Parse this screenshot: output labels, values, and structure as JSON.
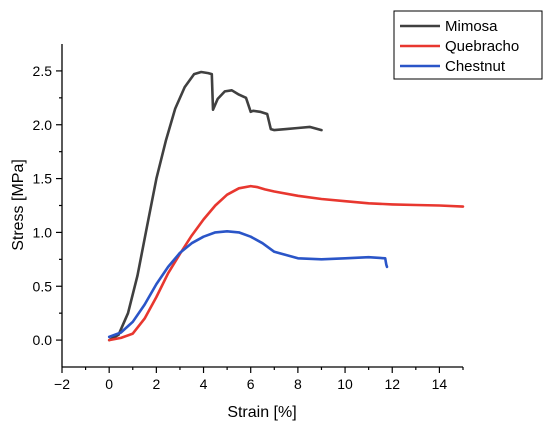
{
  "chart_data": {
    "type": "line",
    "xlabel": "Strain [%]",
    "ylabel": "Stress [MPa]",
    "xlim": [
      -2,
      15
    ],
    "ylim": [
      -0.25,
      2.75
    ],
    "xticks": [
      -2,
      0,
      2,
      4,
      6,
      8,
      10,
      12,
      14
    ],
    "yticks": [
      0.0,
      0.5,
      1.0,
      1.5,
      2.0,
      2.5
    ],
    "ytick_labels": [
      "0.0",
      "0.5",
      "1.0",
      "1.5",
      "2.0",
      "2.5"
    ],
    "grid": false,
    "legend_position": "top-right",
    "series": [
      {
        "name": "Mimosa",
        "color": "#404040",
        "x": [
          0.0,
          0.4,
          0.8,
          1.2,
          1.6,
          2.0,
          2.4,
          2.8,
          3.2,
          3.6,
          3.9,
          4.2,
          4.35,
          4.4,
          4.6,
          4.9,
          5.2,
          5.5,
          5.8,
          6.0,
          6.1,
          6.4,
          6.7,
          6.85,
          7.0,
          7.5,
          8.0,
          8.5,
          9.0
        ],
        "y": [
          0.0,
          0.05,
          0.25,
          0.6,
          1.05,
          1.5,
          1.85,
          2.15,
          2.35,
          2.47,
          2.49,
          2.48,
          2.47,
          2.14,
          2.24,
          2.31,
          2.32,
          2.28,
          2.25,
          2.12,
          2.13,
          2.12,
          2.1,
          1.96,
          1.95,
          1.96,
          1.97,
          1.98,
          1.95
        ]
      },
      {
        "name": "Quebracho",
        "color": "#e8372f",
        "x": [
          0.0,
          0.5,
          1.0,
          1.5,
          2.0,
          2.5,
          3.0,
          3.5,
          4.0,
          4.5,
          5.0,
          5.5,
          6.0,
          6.3,
          6.6,
          7.0,
          8.0,
          9.0,
          10.0,
          11.0,
          12.0,
          13.0,
          14.0,
          15.0
        ],
        "y": [
          0.0,
          0.02,
          0.06,
          0.2,
          0.4,
          0.62,
          0.8,
          0.97,
          1.12,
          1.25,
          1.35,
          1.41,
          1.43,
          1.42,
          1.4,
          1.38,
          1.34,
          1.31,
          1.29,
          1.27,
          1.26,
          1.255,
          1.25,
          1.24
        ]
      },
      {
        "name": "Chestnut",
        "color": "#2a55c8",
        "x": [
          0.0,
          0.5,
          1.0,
          1.5,
          2.0,
          2.5,
          3.0,
          3.5,
          4.0,
          4.5,
          5.0,
          5.5,
          6.0,
          6.5,
          7.0,
          7.5,
          8.0,
          9.0,
          10.0,
          11.0,
          11.7,
          11.75,
          11.78
        ],
        "y": [
          0.03,
          0.07,
          0.17,
          0.33,
          0.52,
          0.68,
          0.81,
          0.9,
          0.96,
          1.0,
          1.01,
          1.0,
          0.96,
          0.9,
          0.82,
          0.79,
          0.76,
          0.75,
          0.76,
          0.77,
          0.76,
          0.7,
          0.68
        ]
      }
    ]
  }
}
